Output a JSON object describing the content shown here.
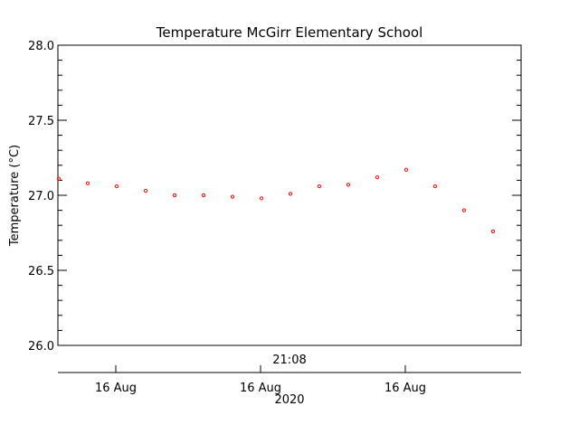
{
  "chart_data": {
    "type": "scatter",
    "title": "Temperature McGirr Elementary School",
    "ylabel": "Temperature (°C)",
    "ylim": [
      26.0,
      28.0
    ],
    "yticks": [
      "26.0",
      "26.5",
      "27.0",
      "27.5",
      "28.0"
    ],
    "y_minor_step": 0.1,
    "time_label": "21:08",
    "date_ticks": [
      "16 Aug",
      "16 Aug",
      "16 Aug"
    ],
    "year_label": "2020",
    "marker_color": "#ff0000",
    "axis_color": "#000000",
    "grid": false,
    "points": [
      27.11,
      27.08,
      27.06,
      27.03,
      27.0,
      27.0,
      26.99,
      26.98,
      27.01,
      27.06,
      27.07,
      27.12,
      27.17,
      27.06,
      26.9,
      26.76
    ]
  }
}
